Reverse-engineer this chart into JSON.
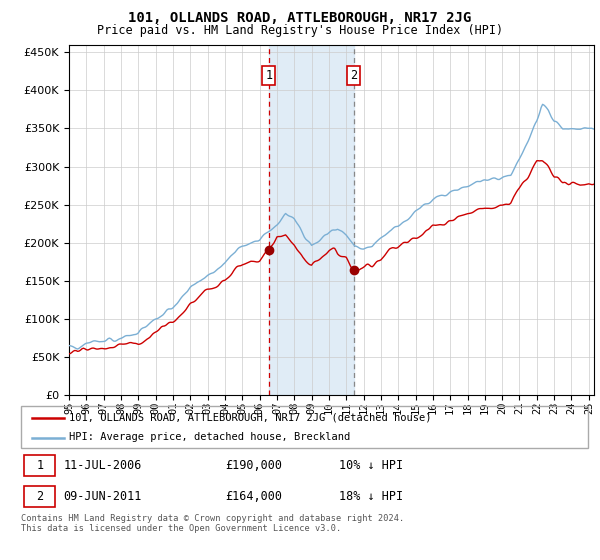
{
  "title": "101, OLLANDS ROAD, ATTLEBOROUGH, NR17 2JG",
  "subtitle": "Price paid vs. HM Land Registry's House Price Index (HPI)",
  "ylim": [
    0,
    460000
  ],
  "xlim_start": 1995.0,
  "xlim_end": 2025.3,
  "sale1_date": 2006.53,
  "sale1_price": 190000,
  "sale2_date": 2011.44,
  "sale2_price": 164000,
  "hpi_color": "#7bafd4",
  "price_color": "#cc0000",
  "sale_marker_color": "#990000",
  "shaded_color": "#cce0f0",
  "legend_label_price": "101, OLLANDS ROAD, ATTLEBOROUGH, NR17 2JG (detached house)",
  "legend_label_hpi": "HPI: Average price, detached house, Breckland",
  "background_color": "#ffffff",
  "grid_color": "#cccccc"
}
